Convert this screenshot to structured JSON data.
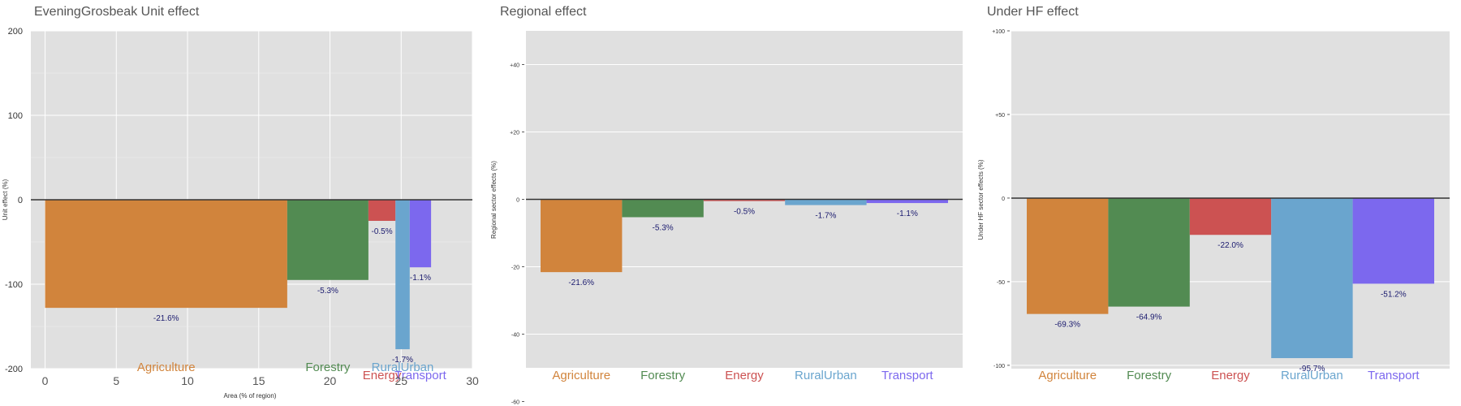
{
  "colors": {
    "Agriculture": "#D1843C",
    "Forestry": "#528B52",
    "Energy": "#CC5252",
    "RuralUrban": "#6AA5CE",
    "Transport": "#7C68EE",
    "panel_bg": "#E0E0E0"
  },
  "chart_data": [
    {
      "type": "bar",
      "title": "EveningGrosbeak Unit effect",
      "xlabel": "Area (% of region)",
      "ylabel": "Unit effect (%)",
      "xlim": [
        -1,
        30
      ],
      "ylim": [
        -200,
        200
      ],
      "xticks": [
        0,
        5,
        10,
        15,
        20,
        25,
        30
      ],
      "yticks": [
        {
          "v": 200,
          "label": "200"
        },
        {
          "v": 100,
          "label": "100"
        },
        {
          "v": 0,
          "label": "0"
        },
        {
          "v": -100,
          "label": "-100"
        },
        {
          "v": -200,
          "label": "-200"
        }
      ],
      "categories": [
        "Agriculture",
        "Forestry",
        "Energy",
        "RuralUrban",
        "Transport"
      ],
      "area": [
        17,
        5.7,
        1.9,
        1.0,
        1.5
      ],
      "values": [
        -128,
        -95,
        -25,
        -177,
        -80
      ],
      "regional_labels": [
        "-21.6%",
        "-5.3%",
        "-0.5%",
        "-1.7%",
        "-1.1%"
      ]
    },
    {
      "type": "bar",
      "title": "Regional effect",
      "ylabel": "Regional sector effects (%)",
      "ylim": [
        -50,
        50
      ],
      "yticks": [
        {
          "v": 40,
          "label": "+40"
        },
        {
          "v": 20,
          "label": "+20"
        },
        {
          "v": 0,
          "label": "0"
        },
        {
          "v": -20,
          "label": "-20"
        },
        {
          "v": -40,
          "label": "-40"
        },
        {
          "v": -60,
          "label": "-60"
        }
      ],
      "categories": [
        "Agriculture",
        "Forestry",
        "Energy",
        "RuralUrban",
        "Transport"
      ],
      "values": [
        -21.6,
        -5.3,
        -0.5,
        -1.7,
        -1.1
      ],
      "labels": [
        "-21.6%",
        "-5.3%",
        "-0.5%",
        "-1.7%",
        "-1.1%"
      ]
    },
    {
      "type": "bar",
      "title": "Under HF effect",
      "ylabel": "Under HF sector effects (%)",
      "ylim": [
        -102,
        100
      ],
      "yticks": [
        {
          "v": 100,
          "label": "+100"
        },
        {
          "v": 50,
          "label": "+50"
        },
        {
          "v": 0,
          "label": "0"
        },
        {
          "v": -50,
          "label": "-50"
        },
        {
          "v": -100,
          "label": "-100"
        }
      ],
      "categories": [
        "Agriculture",
        "Forestry",
        "Energy",
        "RuralUrban",
        "Transport"
      ],
      "values": [
        -69.3,
        -64.9,
        -22.0,
        -95.7,
        -51.2
      ],
      "labels": [
        "-69.3%",
        "-64.9%",
        "-22.0%",
        "-95.7%",
        "-51.2%"
      ]
    }
  ]
}
